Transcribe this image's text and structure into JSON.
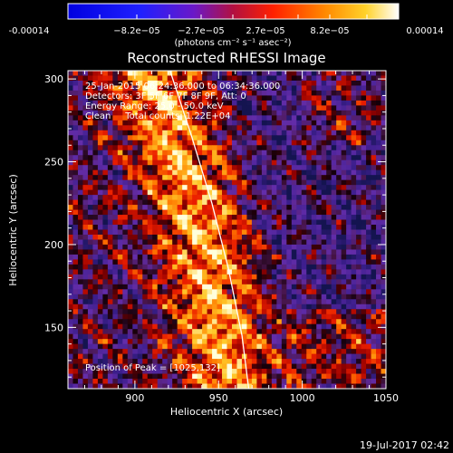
{
  "chart_data": {
    "type": "heatmap",
    "title": "Reconstructed RHESSI Image",
    "xlabel": "Heliocentric X (arcsec)",
    "ylabel": "Heliocentric Y (arcsec)",
    "xlim": [
      860,
      1050
    ],
    "ylim": [
      113,
      305
    ],
    "x_ticks": [
      900,
      950,
      1000,
      1050
    ],
    "y_ticks": [
      150,
      200,
      250,
      300
    ],
    "colorbar": {
      "range": [
        -0.00014,
        0.00014
      ],
      "ticks": [
        "-0.00014",
        "−8.2e−05",
        "−2.7e−05",
        "2.7e−05",
        "8.2e−05",
        "0.00014"
      ],
      "label": "(photons cm⁻² s⁻¹ asec⁻²)"
    },
    "annotations": [
      "25-Jan-2015 06:24:36.000 to 06:34:36.000",
      "Detectors: 3F 5F 6F 7F 8F 9F, Att: 0",
      "Energy Range: 25.0 - 50.0 keV",
      "Clean     Total counts: 1.22E+04"
    ],
    "peak_label": "Position of Peak = [1025,132]",
    "peak": [
      1025,
      132
    ],
    "limb_curve": [
      [
        921,
        305
      ],
      [
        934,
        265
      ],
      [
        946,
        225
      ],
      [
        956,
        185
      ],
      [
        964,
        145
      ],
      [
        968,
        113
      ]
    ]
  },
  "footer": {
    "timestamp": "19-Jul-2017 02:42"
  }
}
